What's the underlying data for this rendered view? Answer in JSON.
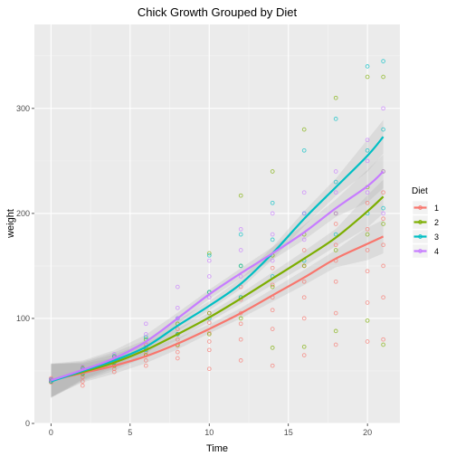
{
  "chart_data": {
    "type": "scatter",
    "title": "Chick Growth Grouped by Diet",
    "xlabel": "Time",
    "ylabel": "weight",
    "xlim": [
      -1.05,
      22.05
    ],
    "ylim": [
      0,
      380
    ],
    "x_ticks": [
      0,
      5,
      10,
      15,
      20
    ],
    "y_ticks": [
      0,
      100,
      200,
      300
    ],
    "x_tick_labels": [
      "0",
      "5",
      "10",
      "15",
      "20"
    ],
    "y_tick_labels": [
      "0",
      "100",
      "200",
      "300"
    ],
    "grid": true,
    "panel_background": "#ebebeb",
    "legend": {
      "title": "Diet",
      "position": "right",
      "entries": [
        "1",
        "2",
        "3",
        "4"
      ]
    },
    "series": [
      {
        "name": "1",
        "color": "#f8766d",
        "points": [
          [
            0,
            39
          ],
          [
            0,
            40
          ],
          [
            0,
            41
          ],
          [
            0,
            42
          ],
          [
            0,
            43
          ],
          [
            2,
            36
          ],
          [
            2,
            40
          ],
          [
            2,
            44
          ],
          [
            2,
            48
          ],
          [
            2,
            50
          ],
          [
            2,
            52
          ],
          [
            4,
            49
          ],
          [
            4,
            52
          ],
          [
            4,
            55
          ],
          [
            4,
            58
          ],
          [
            4,
            61
          ],
          [
            4,
            63
          ],
          [
            6,
            55
          ],
          [
            6,
            60
          ],
          [
            6,
            65
          ],
          [
            6,
            68
          ],
          [
            6,
            72
          ],
          [
            6,
            75
          ],
          [
            8,
            62
          ],
          [
            8,
            68
          ],
          [
            8,
            74
          ],
          [
            8,
            80
          ],
          [
            8,
            85
          ],
          [
            8,
            90
          ],
          [
            10,
            52
          ],
          [
            10,
            70
          ],
          [
            10,
            78
          ],
          [
            10,
            86
          ],
          [
            10,
            96
          ],
          [
            10,
            105
          ],
          [
            12,
            60
          ],
          [
            12,
            80
          ],
          [
            12,
            95
          ],
          [
            12,
            105
          ],
          [
            12,
            118
          ],
          [
            12,
            130
          ],
          [
            14,
            55
          ],
          [
            14,
            90
          ],
          [
            14,
            108
          ],
          [
            14,
            120
          ],
          [
            14,
            132
          ],
          [
            14,
            148
          ],
          [
            16,
            65
          ],
          [
            16,
            100
          ],
          [
            16,
            120
          ],
          [
            16,
            135
          ],
          [
            16,
            150
          ],
          [
            16,
            165
          ],
          [
            18,
            75
          ],
          [
            18,
            105
          ],
          [
            18,
            135
          ],
          [
            18,
            155
          ],
          [
            18,
            170
          ],
          [
            18,
            190
          ],
          [
            20,
            78
          ],
          [
            20,
            115
          ],
          [
            20,
            145
          ],
          [
            20,
            165
          ],
          [
            20,
            185
          ],
          [
            20,
            210
          ],
          [
            21,
            80
          ],
          [
            21,
            120
          ],
          [
            21,
            150
          ],
          [
            21,
            170
          ],
          [
            21,
            195
          ],
          [
            21,
            220
          ]
        ],
        "trend": [
          [
            0,
            41
          ],
          [
            2,
            48
          ],
          [
            4,
            55
          ],
          [
            6,
            64
          ],
          [
            8,
            76
          ],
          [
            10,
            90
          ],
          [
            12,
            105
          ],
          [
            14,
            122
          ],
          [
            16,
            139
          ],
          [
            18,
            157
          ],
          [
            20,
            171
          ],
          [
            21,
            178
          ]
        ]
      },
      {
        "name": "2",
        "color": "#7cae00",
        "points": [
          [
            0,
            40
          ],
          [
            0,
            41
          ],
          [
            0,
            42
          ],
          [
            2,
            47
          ],
          [
            2,
            50
          ],
          [
            2,
            53
          ],
          [
            4,
            55
          ],
          [
            4,
            60
          ],
          [
            4,
            64
          ],
          [
            6,
            65
          ],
          [
            6,
            72
          ],
          [
            6,
            80
          ],
          [
            8,
            75
          ],
          [
            8,
            85
          ],
          [
            8,
            95
          ],
          [
            10,
            85
          ],
          [
            10,
            105
          ],
          [
            10,
            125
          ],
          [
            10,
            162
          ],
          [
            12,
            100
          ],
          [
            12,
            120
          ],
          [
            12,
            150
          ],
          [
            12,
            217
          ],
          [
            14,
            72
          ],
          [
            14,
            130
          ],
          [
            14,
            160
          ],
          [
            14,
            240
          ],
          [
            16,
            73
          ],
          [
            16,
            150
          ],
          [
            16,
            180
          ],
          [
            16,
            280
          ],
          [
            18,
            88
          ],
          [
            18,
            165
          ],
          [
            18,
            200
          ],
          [
            18,
            310
          ],
          [
            20,
            98
          ],
          [
            20,
            180
          ],
          [
            20,
            225
          ],
          [
            20,
            330
          ],
          [
            21,
            75
          ],
          [
            21,
            190
          ],
          [
            21,
            240
          ],
          [
            21,
            330
          ]
        ],
        "trend": [
          [
            0,
            41
          ],
          [
            2,
            49
          ],
          [
            4,
            58
          ],
          [
            6,
            70
          ],
          [
            8,
            85
          ],
          [
            10,
            101
          ],
          [
            12,
            119
          ],
          [
            14,
            138
          ],
          [
            16,
            157
          ],
          [
            18,
            177
          ],
          [
            20,
            202
          ],
          [
            21,
            216
          ]
        ]
      },
      {
        "name": "3",
        "color": "#00bfc4",
        "points": [
          [
            0,
            40
          ],
          [
            0,
            42
          ],
          [
            2,
            48
          ],
          [
            2,
            52
          ],
          [
            4,
            58
          ],
          [
            4,
            64
          ],
          [
            6,
            70
          ],
          [
            6,
            82
          ],
          [
            8,
            85
          ],
          [
            8,
            100
          ],
          [
            10,
            100
          ],
          [
            10,
            125
          ],
          [
            10,
            160
          ],
          [
            12,
            120
          ],
          [
            12,
            150
          ],
          [
            12,
            180
          ],
          [
            14,
            140
          ],
          [
            14,
            175
          ],
          [
            14,
            210
          ],
          [
            16,
            155
          ],
          [
            16,
            200
          ],
          [
            16,
            260
          ],
          [
            18,
            180
          ],
          [
            18,
            230
          ],
          [
            18,
            290
          ],
          [
            20,
            200
          ],
          [
            20,
            260
          ],
          [
            20,
            340
          ],
          [
            21,
            205
          ],
          [
            21,
            280
          ],
          [
            21,
            345
          ]
        ],
        "trend": [
          [
            0,
            40
          ],
          [
            2,
            50
          ],
          [
            4,
            60
          ],
          [
            6,
            73
          ],
          [
            8,
            93
          ],
          [
            10,
            112
          ],
          [
            12,
            133
          ],
          [
            14,
            162
          ],
          [
            16,
            195
          ],
          [
            18,
            225
          ],
          [
            20,
            255
          ],
          [
            21,
            273
          ]
        ]
      },
      {
        "name": "4",
        "color": "#c77cff",
        "points": [
          [
            0,
            41
          ],
          [
            0,
            42
          ],
          [
            2,
            51
          ],
          [
            2,
            54
          ],
          [
            4,
            62
          ],
          [
            4,
            66
          ],
          [
            6,
            76
          ],
          [
            6,
            85
          ],
          [
            6,
            95
          ],
          [
            8,
            100
          ],
          [
            8,
            110
          ],
          [
            8,
            130
          ],
          [
            10,
            120
          ],
          [
            10,
            140
          ],
          [
            10,
            155
          ],
          [
            12,
            140
          ],
          [
            12,
            165
          ],
          [
            12,
            185
          ],
          [
            14,
            155
          ],
          [
            14,
            180
          ],
          [
            14,
            200
          ],
          [
            16,
            175
          ],
          [
            16,
            200
          ],
          [
            16,
            220
          ],
          [
            18,
            200
          ],
          [
            18,
            220
          ],
          [
            18,
            240
          ],
          [
            20,
            220
          ],
          [
            20,
            250
          ],
          [
            20,
            270
          ],
          [
            21,
            200
          ],
          [
            21,
            240
          ],
          [
            21,
            300
          ]
        ],
        "trend": [
          [
            0,
            41
          ],
          [
            2,
            51
          ],
          [
            4,
            62
          ],
          [
            6,
            78
          ],
          [
            8,
            100
          ],
          [
            10,
            123
          ],
          [
            12,
            143
          ],
          [
            14,
            162
          ],
          [
            16,
            182
          ],
          [
            18,
            205
          ],
          [
            20,
            226
          ],
          [
            21,
            240
          ]
        ]
      }
    ]
  }
}
